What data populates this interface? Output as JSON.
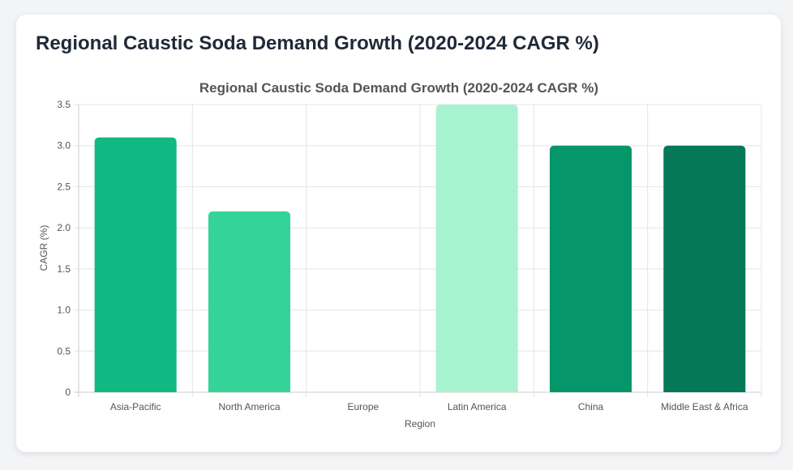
{
  "card": {
    "heading": "Regional Caustic Soda Demand Growth (2020-2024 CAGR %)"
  },
  "chart_data": {
    "type": "bar",
    "title": "Regional Caustic Soda Demand Growth (2020-2024 CAGR %)",
    "xlabel": "Region",
    "ylabel": "CAGR (%)",
    "categories": [
      "Asia-Pacific",
      "North America",
      "Europe",
      "Latin America",
      "China",
      "Middle East & Africa"
    ],
    "values": [
      3.1,
      2.2,
      0,
      3.5,
      3.0,
      3.0
    ],
    "colors": [
      "#10b981",
      "#34d399",
      "#6ee7b7",
      "#a7f3d0",
      "#059669",
      "#047857"
    ],
    "ylim": [
      0,
      3.5
    ],
    "yticks": [
      "0",
      "0.5",
      "1.0",
      "1.5",
      "2.0",
      "2.5",
      "3.0",
      "3.5"
    ],
    "grid": true,
    "legend": "none"
  }
}
